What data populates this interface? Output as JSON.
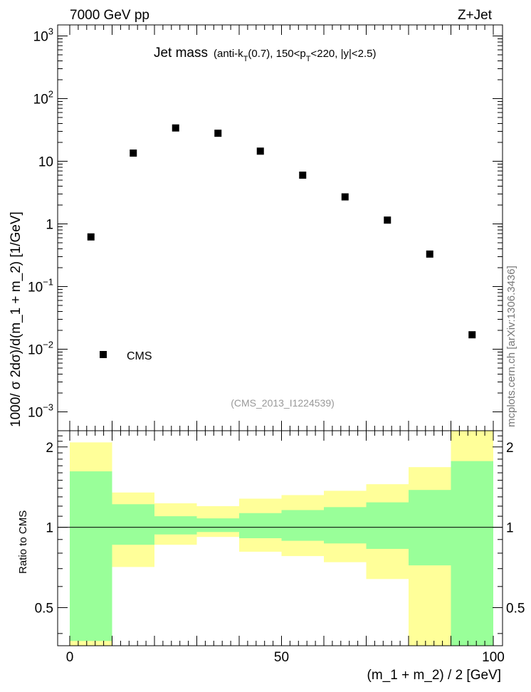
{
  "header": {
    "left": "7000 GeV pp",
    "right": "Z+Jet"
  },
  "side_label": "mcplots.cern.ch [arXiv:1306.3436]",
  "colors": {
    "band_outer": "#ffff99",
    "band_inner": "#99ff99",
    "marker": "#000000",
    "analysis_label": "#999999"
  },
  "chart_data": [
    {
      "type": "scatter",
      "title": "Jet mass",
      "subtitle_parts": [
        "(anti-k",
        "T",
        "(0.7), 150<p",
        "T",
        "<220, |y|<2.5)"
      ],
      "ylabel": "1000/ σ 2dσ)/d(m_1 + m_2) [1/GeV]",
      "yscale": "log",
      "ylim": [
        0.0005,
        1500
      ],
      "xlim": [
        0,
        100
      ],
      "y_ticks": [
        {
          "value": 0.001,
          "base": "10",
          "exp": "−3"
        },
        {
          "value": 0.01,
          "base": "10",
          "exp": "−2"
        },
        {
          "value": 0.1,
          "base": "10",
          "exp": "−1"
        },
        {
          "value": 1,
          "base": "1",
          "exp": ""
        },
        {
          "value": 10,
          "base": "10",
          "exp": ""
        },
        {
          "value": 100,
          "base": "10",
          "exp": "2"
        },
        {
          "value": 1000,
          "base": "10",
          "exp": "3"
        }
      ],
      "legend": {
        "label": "CMS",
        "position": "bottom-left"
      },
      "analysis_label": "(CMS_2013_I1224539)",
      "series": [
        {
          "name": "CMS",
          "x": [
            5,
            15,
            25,
            35,
            45,
            55,
            65,
            75,
            85,
            95
          ],
          "y": [
            0.62,
            13.5,
            34,
            28,
            14.5,
            6.0,
            2.7,
            1.15,
            0.33,
            0.017
          ]
        }
      ]
    },
    {
      "type": "area",
      "title": "",
      "ylabel": "Ratio to CMS",
      "xlabel": "(m_1 + m_2) / 2 [GeV]",
      "ylim": [
        0.36,
        2.3
      ],
      "xlim": [
        0,
        100
      ],
      "x_tick_labels": [
        "0",
        "50",
        "100"
      ],
      "x_ticks": [
        0,
        50,
        100
      ],
      "y_tick_labels": [
        "0.5",
        "1",
        "2"
      ],
      "y_ticks": [
        0.5,
        1,
        2
      ],
      "reference_line": 1,
      "bins": [
        0,
        10,
        20,
        30,
        40,
        50,
        60,
        70,
        80,
        90,
        100
      ],
      "band_outer": {
        "low": [
          0.36,
          0.71,
          0.86,
          0.92,
          0.81,
          0.78,
          0.74,
          0.64,
          0.35,
          0.36
        ],
        "high": [
          2.08,
          1.35,
          1.23,
          1.2,
          1.28,
          1.32,
          1.37,
          1.45,
          1.68,
          2.3
        ]
      },
      "band_inner": {
        "low": [
          0.375,
          0.86,
          0.94,
          0.96,
          0.91,
          0.89,
          0.87,
          0.83,
          0.72,
          0.36
        ],
        "high": [
          1.62,
          1.22,
          1.1,
          1.08,
          1.13,
          1.16,
          1.19,
          1.24,
          1.38,
          1.77
        ]
      }
    }
  ]
}
